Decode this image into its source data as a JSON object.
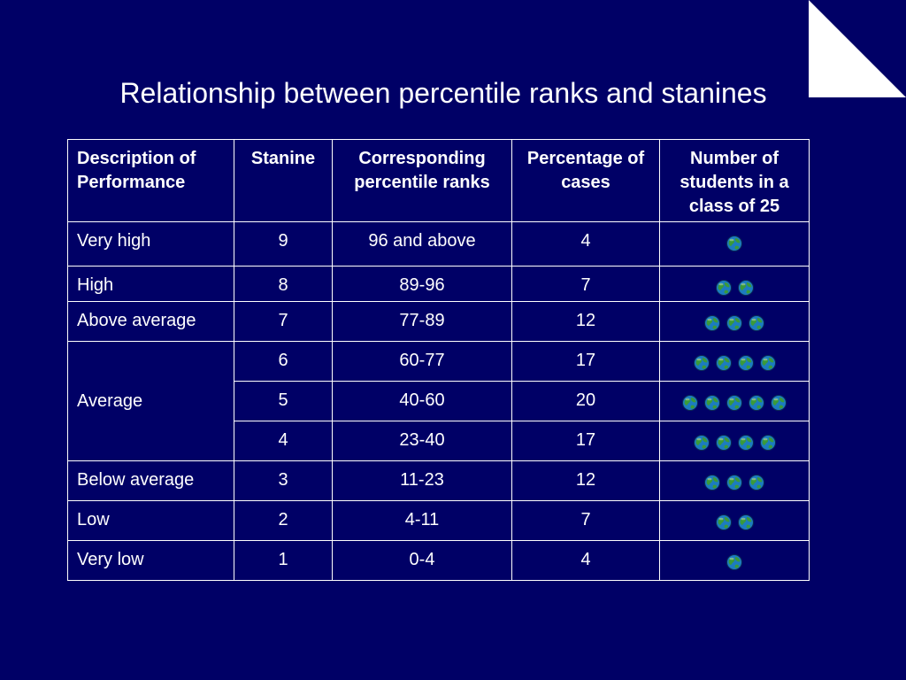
{
  "slide": {
    "title": "Relationship between percentile ranks and stanines"
  },
  "table": {
    "headers": {
      "description": "Description of Performance",
      "stanine": "Stanine",
      "percentile": "Corresponding percentile ranks",
      "percentage": "Percentage of cases",
      "students": "Number of students in a class of 25"
    },
    "rows": [
      {
        "description": "Very high",
        "stanine": "9",
        "percentile": "96 and above",
        "percentage": "4",
        "students": 1
      },
      {
        "description": "High",
        "stanine": "8",
        "percentile": "89-96",
        "percentage": "7",
        "students": 2
      },
      {
        "description": "Above average",
        "stanine": "7",
        "percentile": "77-89",
        "percentage": "12",
        "students": 3
      },
      {
        "description": "Average",
        "stanine": "6",
        "percentile": "60-77",
        "percentage": "17",
        "students": 4
      },
      {
        "description": "Average",
        "stanine": "5",
        "percentile": "40-60",
        "percentage": "20",
        "students": 5
      },
      {
        "description": "Average",
        "stanine": "4",
        "percentile": "23-40",
        "percentage": "17",
        "students": 4
      },
      {
        "description": "Below average",
        "stanine": "3",
        "percentile": "11-23",
        "percentage": "12",
        "students": 3
      },
      {
        "description": "Low",
        "stanine": "2",
        "percentile": "4-11",
        "percentage": "7",
        "students": 2
      },
      {
        "description": "Very low",
        "stanine": "1",
        "percentile": "0-4",
        "percentage": "4",
        "students": 1
      }
    ]
  },
  "icons": {
    "student": "globe-icon"
  },
  "colors": {
    "background": "#000066",
    "text": "#ffffff",
    "corner": "#ffffff",
    "globe_ocean": "#1c7cc0",
    "globe_land": "#3a9a3a"
  }
}
